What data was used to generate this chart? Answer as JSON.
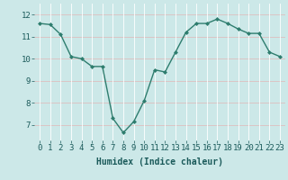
{
  "x": [
    0,
    1,
    2,
    3,
    4,
    5,
    6,
    7,
    8,
    9,
    10,
    11,
    12,
    13,
    14,
    15,
    16,
    17,
    18,
    19,
    20,
    21,
    22,
    23
  ],
  "y": [
    11.6,
    11.55,
    11.1,
    10.1,
    10.0,
    9.65,
    9.65,
    7.3,
    6.65,
    7.15,
    8.1,
    9.5,
    9.4,
    10.3,
    11.2,
    11.6,
    11.6,
    11.8,
    11.6,
    11.35,
    11.15,
    11.15,
    10.3,
    10.1
  ],
  "line_color": "#2e7d6e",
  "marker": "D",
  "marker_size": 2,
  "line_width": 1.0,
  "bg_color": "#cce8e8",
  "grid_color": "#ffffff",
  "grid_hcolor": "#ddbfbf",
  "xlabel": "Humidex (Indice chaleur)",
  "xlabel_fontsize": 7,
  "xlim": [
    -0.5,
    23.5
  ],
  "ylim": [
    6.3,
    12.5
  ],
  "yticks": [
    7,
    8,
    9,
    10,
    11,
    12
  ],
  "xticks": [
    0,
    1,
    2,
    3,
    4,
    5,
    6,
    7,
    8,
    9,
    10,
    11,
    12,
    13,
    14,
    15,
    16,
    17,
    18,
    19,
    20,
    21,
    22,
    23
  ],
  "tick_fontsize": 6.5
}
